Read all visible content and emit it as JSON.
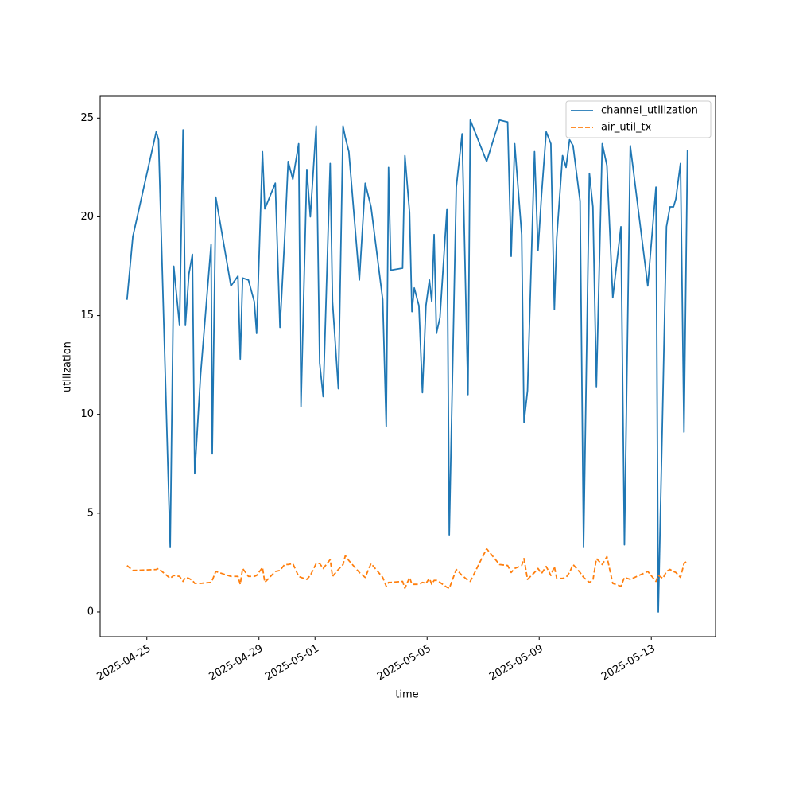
{
  "chart_data": {
    "type": "line",
    "x_label": "time",
    "y_label": "utilization",
    "x": [
      "2025-04-24T07:00",
      "2025-04-24T12:00",
      "2025-04-25T08:00",
      "2025-04-25T10:00",
      "2025-04-25T20:00",
      "2025-04-25T23:00",
      "2025-04-26T04:00",
      "2025-04-26T07:00",
      "2025-04-26T09:00",
      "2025-04-26T12:00",
      "2025-04-26T15:00",
      "2025-04-26T17:00",
      "2025-04-26T22:00",
      "2025-04-27T07:00",
      "2025-04-27T08:00",
      "2025-04-27T11:00",
      "2025-04-28T00:00",
      "2025-04-28T06:00",
      "2025-04-28T08:00",
      "2025-04-28T10:00",
      "2025-04-28T15:00",
      "2025-04-28T20:00",
      "2025-04-28T22:00",
      "2025-04-29T03:00",
      "2025-04-29T05:00",
      "2025-04-29T14:00",
      "2025-04-29T18:00",
      "2025-04-29T22:00",
      "2025-04-30T01:00",
      "2025-04-30T05:00",
      "2025-04-30T10:00",
      "2025-04-30T12:00",
      "2025-04-30T17:00",
      "2025-04-30T20:00",
      "2025-05-01T01:00",
      "2025-05-01T04:00",
      "2025-05-01T07:00",
      "2025-05-01T13:00",
      "2025-05-01T15:00",
      "2025-05-01T20:00",
      "2025-05-02T00:00",
      "2025-05-02T02:00",
      "2025-05-02T05:00",
      "2025-05-02T14:00",
      "2025-05-02T19:00",
      "2025-05-03T00:00",
      "2025-05-03T10:00",
      "2025-05-03T13:00",
      "2025-05-03T15:00",
      "2025-05-03T17:00",
      "2025-05-04T03:00",
      "2025-05-04T05:00",
      "2025-05-04T09:00",
      "2025-05-04T11:00",
      "2025-05-04T13:00",
      "2025-05-04T17:00",
      "2025-05-04T20:00",
      "2025-05-04T23:00",
      "2025-05-05T02:00",
      "2025-05-05T04:00",
      "2025-05-05T06:00",
      "2025-05-05T08:00",
      "2025-05-05T11:00",
      "2025-05-05T17:00",
      "2025-05-05T19:00",
      "2025-05-06T01:00",
      "2025-05-06T06:00",
      "2025-05-06T11:00",
      "2025-05-06T13:00",
      "2025-05-07T03:00",
      "2025-05-07T14:00",
      "2025-05-07T21:00",
      "2025-05-08T00:00",
      "2025-05-08T03:00",
      "2025-05-08T09:00",
      "2025-05-08T11:00",
      "2025-05-08T14:00",
      "2025-05-08T20:00",
      "2025-05-08T23:00",
      "2025-05-09T02:00",
      "2025-05-09T06:00",
      "2025-05-09T10:00",
      "2025-05-09T13:00",
      "2025-05-09T15:00",
      "2025-05-09T20:00",
      "2025-05-09T23:00",
      "2025-05-10T02:00",
      "2025-05-10T05:00",
      "2025-05-10T11:00",
      "2025-05-10T14:00",
      "2025-05-10T19:00",
      "2025-05-10T22:00",
      "2025-05-11T01:00",
      "2025-05-11T06:00",
      "2025-05-11T10:00",
      "2025-05-11T15:00",
      "2025-05-11T22:00",
      "2025-05-12T01:00",
      "2025-05-12T06:00",
      "2025-05-12T21:00",
      "2025-05-13T04:00",
      "2025-05-13T06:00",
      "2025-05-13T10:00",
      "2025-05-13T13:00",
      "2025-05-13T16:00",
      "2025-05-13T19:00",
      "2025-05-13T21:00",
      "2025-05-14T01:00",
      "2025-05-14T04:00",
      "2025-05-14T07:00"
    ],
    "series": [
      {
        "name": "channel_utilization",
        "color": "#1f77b4",
        "dash": false,
        "values": [
          15.8,
          19.0,
          24.3,
          23.9,
          3.3,
          17.5,
          14.5,
          24.4,
          14.5,
          17.1,
          18.1,
          7.0,
          12.0,
          18.6,
          8.0,
          21.0,
          16.5,
          17.0,
          12.8,
          16.9,
          16.8,
          15.7,
          14.1,
          23.3,
          20.4,
          21.7,
          14.4,
          18.9,
          22.8,
          21.9,
          23.7,
          10.4,
          22.4,
          20.0,
          24.6,
          12.6,
          10.9,
          22.7,
          15.7,
          11.3,
          24.6,
          24.0,
          23.3,
          16.8,
          21.7,
          20.5,
          15.8,
          9.4,
          22.5,
          17.3,
          17.4,
          23.1,
          20.2,
          15.2,
          16.4,
          15.5,
          11.1,
          15.5,
          16.8,
          15.7,
          19.1,
          14.1,
          14.9,
          20.4,
          3.9,
          21.5,
          24.2,
          11.0,
          24.9,
          22.8,
          24.9,
          24.8,
          18.0,
          23.7,
          19.1,
          9.6,
          11.2,
          23.3,
          18.3,
          21.1,
          24.3,
          23.7,
          15.3,
          18.9,
          23.1,
          22.5,
          23.9,
          23.6,
          20.8,
          3.3,
          22.2,
          20.5,
          11.4,
          23.7,
          22.6,
          15.9,
          19.5,
          3.4,
          23.6,
          16.5,
          21.5,
          0.0,
          11.0,
          19.5,
          20.5,
          20.5,
          20.9,
          22.7,
          9.1,
          23.4
        ]
      },
      {
        "name": "air_util_tx",
        "color": "#ff7f0e",
        "dash": true,
        "values": [
          2.35,
          2.1,
          2.15,
          2.2,
          1.7,
          1.85,
          1.8,
          1.55,
          1.75,
          1.7,
          1.6,
          1.45,
          1.45,
          1.5,
          1.6,
          2.05,
          1.8,
          1.8,
          1.4,
          2.2,
          1.8,
          1.8,
          1.85,
          2.25,
          1.5,
          2.05,
          2.1,
          2.4,
          2.4,
          2.45,
          1.8,
          1.75,
          1.65,
          1.85,
          2.45,
          2.45,
          2.2,
          2.65,
          1.8,
          2.15,
          2.4,
          2.85,
          2.6,
          2.0,
          1.75,
          2.45,
          1.75,
          1.3,
          1.5,
          1.5,
          1.55,
          1.2,
          1.75,
          1.4,
          1.4,
          1.4,
          1.5,
          1.45,
          1.7,
          1.4,
          1.6,
          1.6,
          1.5,
          1.25,
          1.2,
          2.15,
          1.85,
          1.6,
          1.55,
          3.2,
          2.4,
          2.35,
          2.0,
          2.2,
          2.35,
          2.7,
          1.65,
          2.0,
          2.2,
          1.95,
          2.3,
          1.85,
          2.3,
          1.7,
          1.7,
          1.75,
          2.0,
          2.4,
          2.0,
          1.75,
          1.5,
          1.6,
          2.7,
          2.4,
          2.8,
          1.45,
          1.3,
          1.75,
          1.65,
          2.05,
          1.55,
          1.85,
          1.7,
          2.05,
          2.15,
          2.05,
          2.0,
          1.75,
          2.45,
          2.6
        ]
      }
    ],
    "xlim": [
      "2025-04-23T08:00",
      "2025-05-15T07:00"
    ],
    "xticks": [
      "2025-04-25",
      "2025-04-29",
      "2025-05-01",
      "2025-05-05",
      "2025-05-09",
      "2025-05-13"
    ],
    "ylim": [
      -1.25,
      26.1
    ],
    "yticks": [
      0,
      5,
      10,
      15,
      20,
      25
    ],
    "legend": "upper right"
  }
}
